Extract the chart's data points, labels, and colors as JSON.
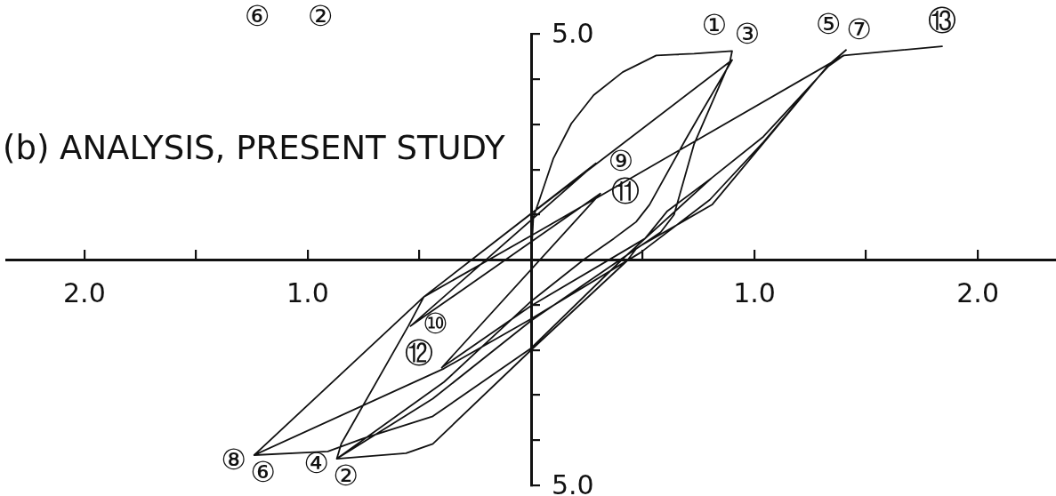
{
  "chart_data": {
    "type": "line",
    "title": "(b) ANALYSIS, PRESENT STUDY",
    "x": [
      0,
      0.01,
      0.04,
      0.1,
      0.18,
      0.28,
      0.41,
      0.56,
      0.73,
      0.9,
      0.89,
      0.73,
      0.64,
      0.58,
      0.47,
      0.43,
      0,
      -0.44,
      -0.56,
      -0.87,
      -0.39,
      0,
      0.24,
      0.37,
      0.47,
      0.53,
      0.69,
      0.76,
      0.9,
      0,
      -0.48,
      -0.55,
      -0.85,
      -0.87,
      -0.44,
      0,
      0.49,
      0.81,
      1.33,
      1.41,
      1.35,
      1.04,
      0.81,
      0.61,
      0.51,
      0.41,
      0,
      -0.44,
      -0.75,
      -0.91,
      -1.24,
      -0.48,
      0.02,
      1.4,
      1.32,
      1.04,
      0.8,
      0.49,
      0,
      -0.39,
      -1.24,
      -0.48,
      0.29,
      -0.54,
      0.31,
      -0.4,
      0,
      0.51,
      0.81,
      1.04,
      1.35,
      1.4,
      1.84
    ],
    "values": [
      0,
      0.94,
      1.37,
      2.25,
      3.02,
      3.65,
      4.16,
      4.53,
      4.57,
      4.63,
      4.39,
      2.57,
      1,
      0.61,
      0.24,
      -0.02,
      -2,
      -4.08,
      -4.29,
      -4.41,
      -2.71,
      -0.92,
      0.02,
      0.47,
      0.84,
      1.22,
      2.65,
      3.25,
      4.43,
      1.02,
      -0.82,
      -1.47,
      -4.08,
      -4.41,
      -3.08,
      -1.35,
      0.31,
      1.22,
      4.31,
      4.65,
      4.39,
      2.73,
      1.82,
      1.08,
      0.47,
      0.02,
      -1.96,
      -3.47,
      -3.96,
      -4.25,
      -4.33,
      -0.82,
      0.59,
      4.53,
      4.25,
      2.61,
      1.33,
      0.16,
      -1.31,
      -2.41,
      -4.33,
      -0.82,
      2.14,
      -1.47,
      1.47,
      -2.39,
      -1.02,
      0.47,
      1.82,
      2.73,
      4.39,
      4.53,
      4.73
    ],
    "color": "#111111",
    "xlim": [
      -2.35,
      2.35
    ],
    "xticks": [
      {
        "value": -2,
        "label": "2.0"
      },
      {
        "value": -1.5,
        "label": null
      },
      {
        "value": -1,
        "label": "1.0"
      },
      {
        "value": -0.5,
        "label": null
      },
      {
        "value": 0.5,
        "label": null
      },
      {
        "value": 1,
        "label": "1.0"
      },
      {
        "value": 1.5,
        "label": null
      },
      {
        "value": 2,
        "label": "2.0"
      }
    ],
    "ylim": [
      -5,
      5
    ],
    "yticks": [
      {
        "value": -5,
        "label": "5.0"
      },
      {
        "value": -4,
        "label": null
      },
      {
        "value": -3,
        "label": null
      },
      {
        "value": -2,
        "label": null
      },
      {
        "value": -1,
        "label": null
      },
      {
        "value": 1,
        "label": null
      },
      {
        "value": 2,
        "label": null
      },
      {
        "value": 3,
        "label": null
      },
      {
        "value": 4,
        "label": null
      },
      {
        "value": 5,
        "label": "5.0"
      }
    ],
    "annotations": [
      "⑥",
      "②",
      {
        "text": "①",
        "x": 0.9,
        "y": 4.63
      },
      {
        "text": "②",
        "x": -0.87,
        "y": -4.41
      },
      {
        "text": "③",
        "x": 0.9,
        "y": 4.43
      },
      {
        "text": "④",
        "x": -0.87,
        "y": -4.41
      },
      {
        "text": "⑤",
        "x": 1.41,
        "y": 4.65
      },
      {
        "text": "⑥",
        "x": -1.24,
        "y": -4.33
      },
      {
        "text": "⑦",
        "x": 1.4,
        "y": 4.53
      },
      {
        "text": "⑧",
        "x": -1.24,
        "y": -4.33
      },
      {
        "text": "⑨",
        "x": 0.29,
        "y": 2.14
      },
      {
        "text": "⑩",
        "x": -0.54,
        "y": -1.47
      },
      {
        "text": "⑪",
        "x": 0.31,
        "y": 1.47
      },
      {
        "text": "⑫",
        "x": -0.4,
        "y": -2.39
      },
      {
        "text": "⑬",
        "x": 1.84,
        "y": 4.73
      }
    ]
  }
}
